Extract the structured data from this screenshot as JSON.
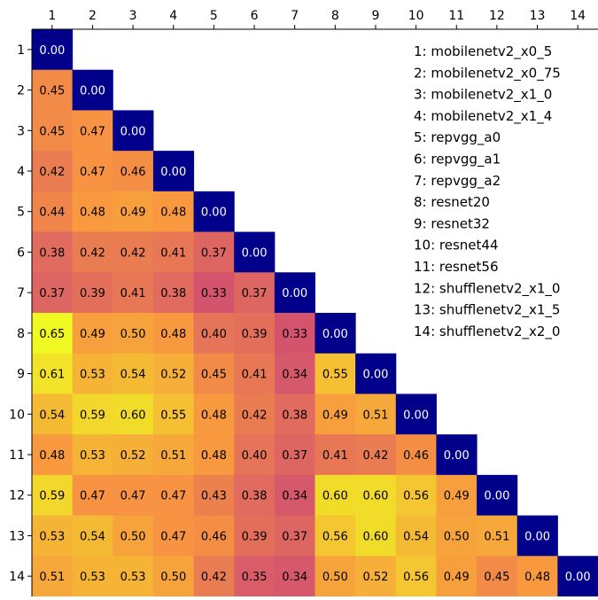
{
  "chart_data": {
    "type": "heatmap",
    "title": "",
    "xlabel": "",
    "ylabel": "",
    "x_tick_labels": [
      "1",
      "2",
      "3",
      "4",
      "5",
      "6",
      "7",
      "8",
      "9",
      "10",
      "11",
      "12",
      "13",
      "14"
    ],
    "y_tick_labels": [
      "1",
      "2",
      "3",
      "4",
      "5",
      "6",
      "7",
      "8",
      "9",
      "10",
      "11",
      "12",
      "13",
      "14"
    ],
    "x_axis_position": "top",
    "colormap": "plasma",
    "value_range": [
      0.0,
      0.65
    ],
    "grid": false,
    "legend_placement": "top-right",
    "legend_entries": [
      "1: mobilenetv2_x0_5",
      "2: mobilenetv2_x0_75",
      "3: mobilenetv2_x1_0",
      "4: mobilenetv2_x1_4",
      "5: repvgg_a0",
      "6: repvgg_a1",
      "7: repvgg_a2",
      "8: resnet20",
      "9: resnet32",
      "10: resnet44",
      "11: resnet56",
      "12: shufflenetv2_x1_0",
      "13: shufflenetv2_x1_5",
      "14: shufflenetv2_x2_0"
    ],
    "matrix": [
      [
        "0.00"
      ],
      [
        "0.45",
        "0.00"
      ],
      [
        "0.45",
        "0.47",
        "0.00"
      ],
      [
        "0.42",
        "0.47",
        "0.46",
        "0.00"
      ],
      [
        "0.44",
        "0.48",
        "0.49",
        "0.48",
        "0.00"
      ],
      [
        "0.38",
        "0.42",
        "0.42",
        "0.41",
        "0.37",
        "0.00"
      ],
      [
        "0.37",
        "0.39",
        "0.41",
        "0.38",
        "0.33",
        "0.37",
        "0.00"
      ],
      [
        "0.65",
        "0.49",
        "0.50",
        "0.48",
        "0.40",
        "0.39",
        "0.33",
        "0.00"
      ],
      [
        "0.61",
        "0.53",
        "0.54",
        "0.52",
        "0.45",
        "0.41",
        "0.34",
        "0.55",
        "0.00"
      ],
      [
        "0.54",
        "0.59",
        "0.60",
        "0.55",
        "0.48",
        "0.42",
        "0.38",
        "0.49",
        "0.51",
        "0.00"
      ],
      [
        "0.48",
        "0.53",
        "0.52",
        "0.51",
        "0.48",
        "0.40",
        "0.37",
        "0.41",
        "0.42",
        "0.46",
        "0.00"
      ],
      [
        "0.59",
        "0.47",
        "0.47",
        "0.47",
        "0.43",
        "0.38",
        "0.34",
        "0.60",
        "0.60",
        "0.56",
        "0.49",
        "0.00"
      ],
      [
        "0.53",
        "0.54",
        "0.50",
        "0.47",
        "0.46",
        "0.39",
        "0.37",
        "0.56",
        "0.60",
        "0.54",
        "0.50",
        "0.51",
        "0.00"
      ],
      [
        "0.51",
        "0.53",
        "0.53",
        "0.50",
        "0.42",
        "0.35",
        "0.34",
        "0.50",
        "0.52",
        "0.56",
        "0.49",
        "0.45",
        "0.48",
        "0.00"
      ]
    ]
  }
}
